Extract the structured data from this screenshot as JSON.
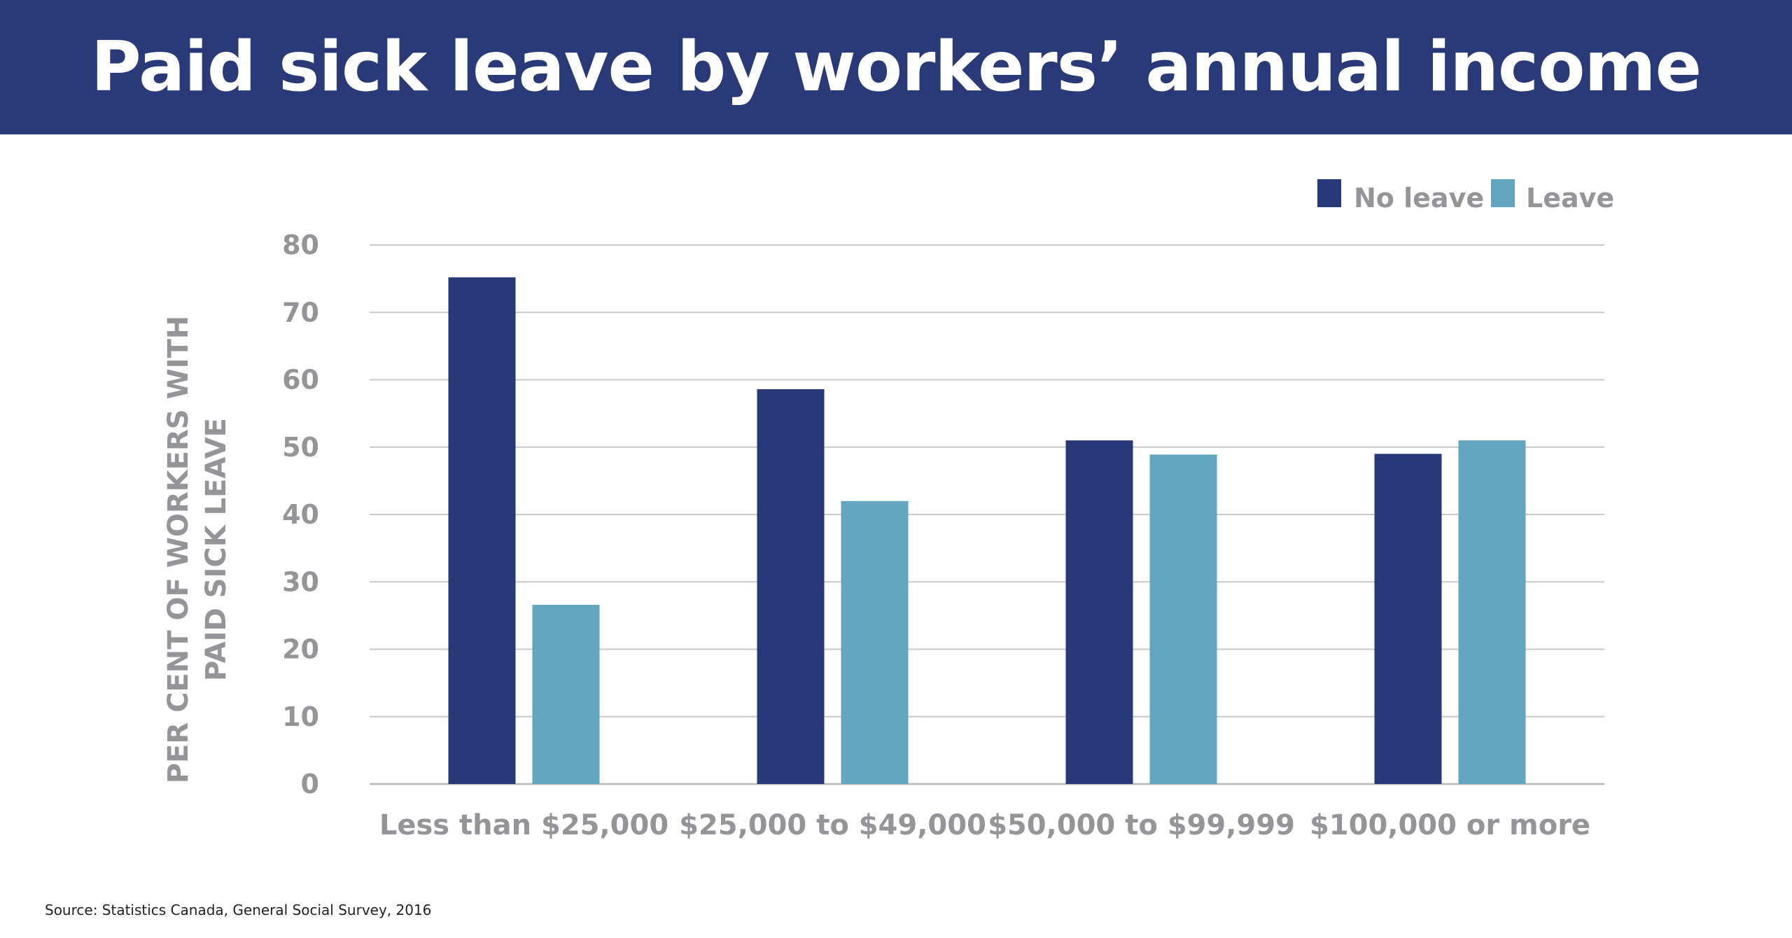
{
  "title": "Paid sick leave by workers’ annual income",
  "source": "Source: Statistics Canada, General Social Survey, 2016",
  "colors": {
    "header_bg": "#2a3977",
    "no_leave": "#293878",
    "leave": "#64a6bf",
    "text_gray": "#939598"
  },
  "chart_data": {
    "type": "bar",
    "title": "Paid sick leave by workers’ annual income",
    "ylabel_lines": [
      "PER CENT OF WORKERS WITH",
      "PAID SICK LEAVE"
    ],
    "xlabel": "",
    "categories": [
      "Less than $25,000",
      "$25,000 to $49,000",
      "$50,000 to $99,999",
      "$100,000 or more"
    ],
    "series": [
      {
        "name": "No leave",
        "color": "#293878",
        "values": [
          75.2,
          58.6,
          51.0,
          49.0
        ]
      },
      {
        "name": "Leave",
        "color": "#64a6bf",
        "values": [
          26.6,
          42.0,
          48.9,
          51.0
        ]
      }
    ],
    "ylim": [
      0,
      80
    ],
    "yticks": [
      0,
      10,
      20,
      30,
      40,
      50,
      60,
      70,
      80
    ],
    "grid": true,
    "legend_position": "top-right"
  }
}
